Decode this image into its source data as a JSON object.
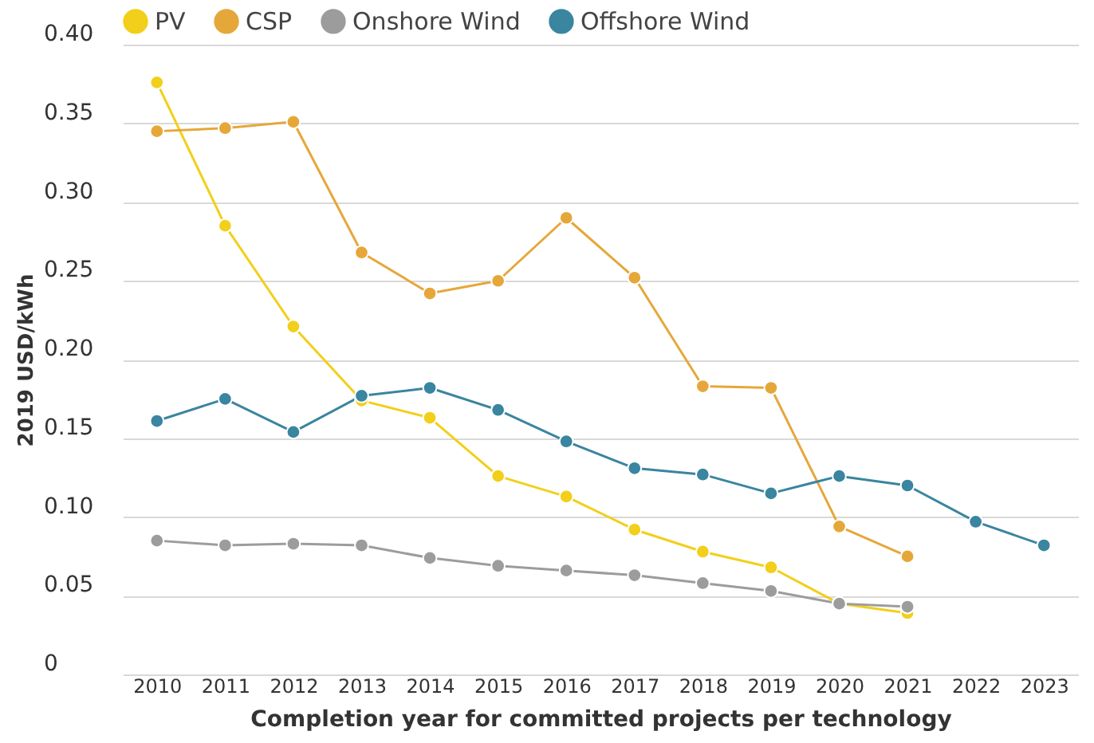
{
  "chart_data": {
    "type": "line",
    "xlabel": "Completion year for committed projects per technology",
    "ylabel": "2019 USD/kWh",
    "categories": [
      "2010",
      "2011",
      "2012",
      "2013",
      "2014",
      "2015",
      "2016",
      "2017",
      "2018",
      "2019",
      "2020",
      "2021",
      "2022",
      "2023"
    ],
    "series": [
      {
        "name": "PV",
        "color": "#f2cf1a",
        "values": [
          0.376,
          0.285,
          0.221,
          0.174,
          0.163,
          0.126,
          0.113,
          0.092,
          0.078,
          0.068,
          0.045,
          0.039,
          null,
          null
        ]
      },
      {
        "name": "CSP",
        "color": "#e6a73a",
        "values": [
          0.345,
          0.347,
          0.351,
          0.268,
          0.242,
          0.25,
          0.29,
          0.252,
          0.183,
          0.182,
          0.094,
          0.075,
          null,
          null
        ]
      },
      {
        "name": "Onshore Wind",
        "color": "#9c9c9c",
        "values": [
          0.085,
          0.082,
          0.083,
          0.082,
          0.074,
          0.069,
          0.066,
          0.063,
          0.058,
          0.053,
          0.045,
          0.043,
          null,
          null
        ]
      },
      {
        "name": "Offshore Wind",
        "color": "#3a85a0",
        "values": [
          0.161,
          0.175,
          0.154,
          0.177,
          0.182,
          0.168,
          0.148,
          0.131,
          0.127,
          0.115,
          0.126,
          0.12,
          0.097,
          0.082
        ]
      }
    ],
    "ylim": [
      0,
      0.4
    ],
    "yticks": [
      {
        "value": 0,
        "label": "0"
      },
      {
        "value": 0.05,
        "label": "0.05"
      },
      {
        "value": 0.1,
        "label": "0.10"
      },
      {
        "value": 0.15,
        "label": "0.15"
      },
      {
        "value": 0.2,
        "label": "0.20"
      },
      {
        "value": 0.25,
        "label": "0.25"
      },
      {
        "value": 0.3,
        "label": "0.30"
      },
      {
        "value": 0.35,
        "label": "0.35"
      },
      {
        "value": 0.4,
        "label": "0.40"
      }
    ],
    "grid": "y",
    "legend": "top",
    "marker": "circle",
    "line_style": "solid"
  }
}
